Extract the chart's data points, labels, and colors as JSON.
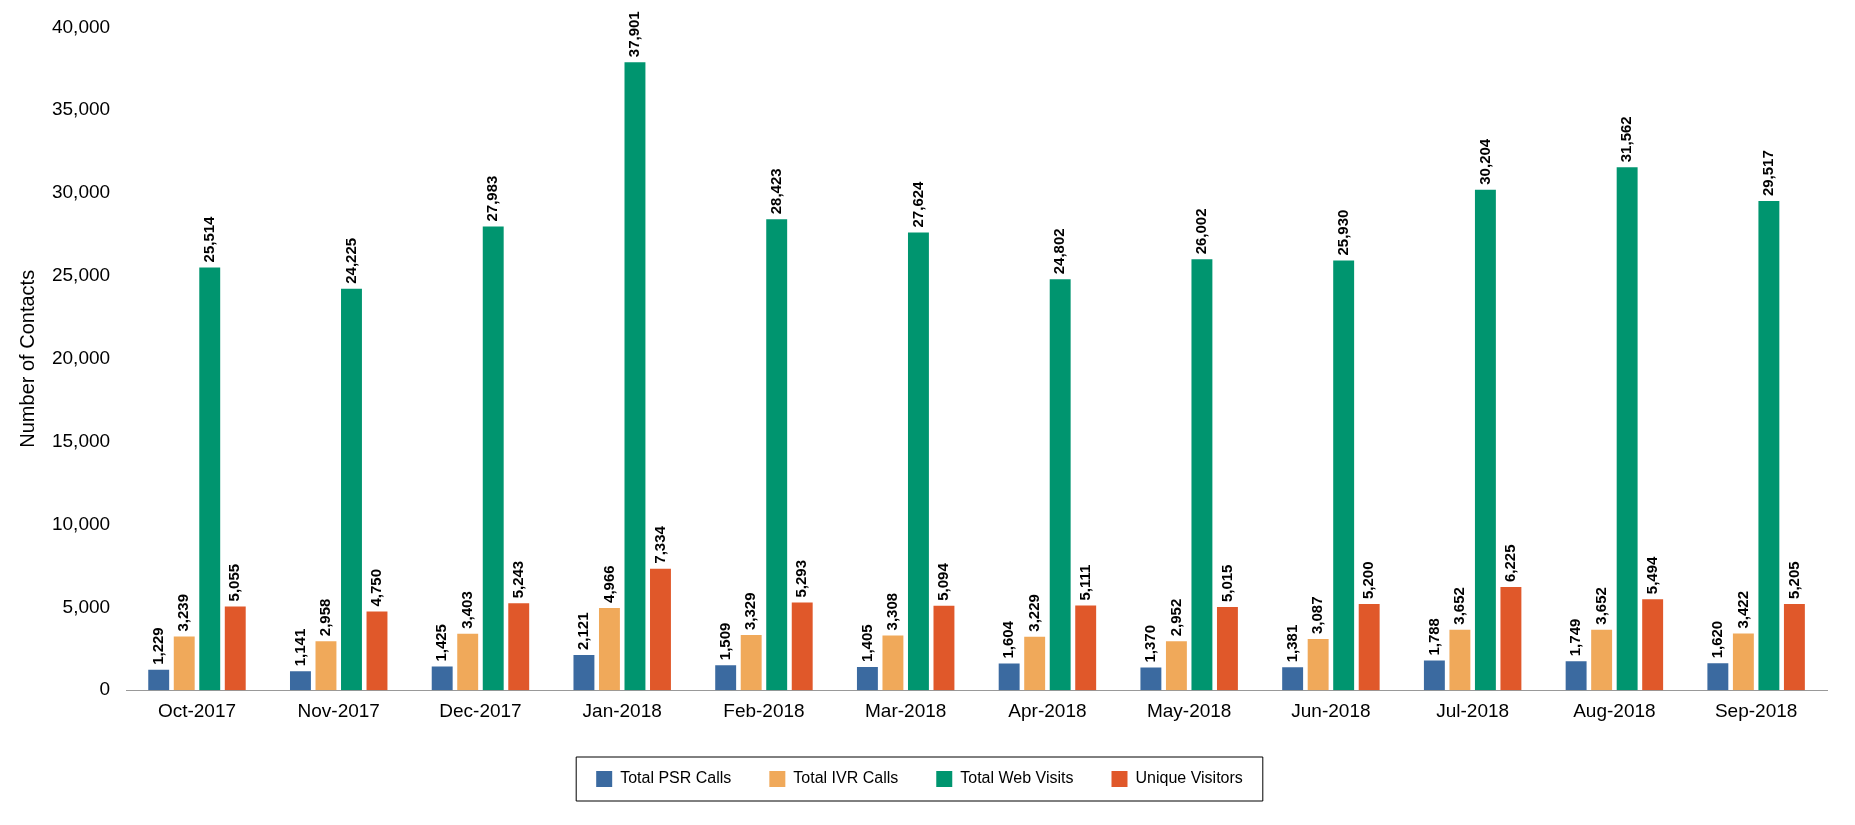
{
  "chart_data": {
    "type": "bar",
    "ylabel": "Number of Contacts",
    "categories": [
      "Oct-2017",
      "Nov-2017",
      "Dec-2017",
      "Jan-2018",
      "Feb-2018",
      "Mar-2018",
      "Apr-2018",
      "May-2018",
      "Jun-2018",
      "Jul-2018",
      "Aug-2018",
      "Sep-2018"
    ],
    "series": [
      {
        "name": "Total PSR Calls",
        "color": "#3b6aa0",
        "values": [
          1229,
          1141,
          1425,
          2121,
          1509,
          1405,
          1604,
          1370,
          1381,
          1788,
          1749,
          1620
        ],
        "value_labels": [
          "1,229",
          "1,141",
          "1,425",
          "2,121",
          "1,509",
          "1,405",
          "1,604",
          "1,370",
          "1,381",
          "1,788",
          "1,749",
          "1,620"
        ]
      },
      {
        "name": "Total IVR Calls",
        "color": "#f0a95a",
        "values": [
          3239,
          2958,
          3403,
          4966,
          3329,
          3308,
          3229,
          2952,
          3087,
          3652,
          3652,
          3422
        ],
        "value_labels": [
          "3,239",
          "2,958",
          "3,403",
          "4,966",
          "3,329",
          "3,308",
          "3,229",
          "2,952",
          "3,087",
          "3,652",
          "3,652",
          "3,422"
        ]
      },
      {
        "name": "Total Web Visits",
        "color": "#00956f",
        "values": [
          25514,
          24225,
          27983,
          37901,
          28423,
          27624,
          24802,
          26002,
          25930,
          30204,
          31562,
          29517
        ],
        "value_labels": [
          "25,514",
          "24,225",
          "27,983",
          "37,901",
          "28,423",
          "27,624",
          "24,802",
          "26,002",
          "25,930",
          "30,204",
          "31,562",
          "29,517"
        ]
      },
      {
        "name": "Unique Visitors",
        "color": "#e0582a",
        "values": [
          5055,
          4750,
          5243,
          7334,
          5293,
          5094,
          5111,
          5015,
          5200,
          6225,
          5494,
          5205
        ],
        "value_labels": [
          "5,055",
          "4,750",
          "5,243",
          "7,334",
          "5,293",
          "5,094",
          "5,111",
          "5,015",
          "5,200",
          "6,225",
          "5,494",
          "5,205"
        ]
      }
    ],
    "ylim": [
      0,
      40000
    ],
    "yticks": [
      0,
      {
        "value": 5000,
        "label": "5,000"
      },
      {
        "value": 10000,
        "label": "10,000"
      },
      {
        "value": 15000,
        "label": "15,000"
      },
      {
        "value": 20000,
        "label": "20,000"
      },
      {
        "value": 25000,
        "label": "25,000"
      },
      {
        "value": 30000,
        "label": "30,000"
      },
      {
        "value": 35000,
        "label": "35,000"
      },
      {
        "value": 40000,
        "label": "40,000"
      }
    ],
    "grid": false,
    "legend": "bottom"
  }
}
